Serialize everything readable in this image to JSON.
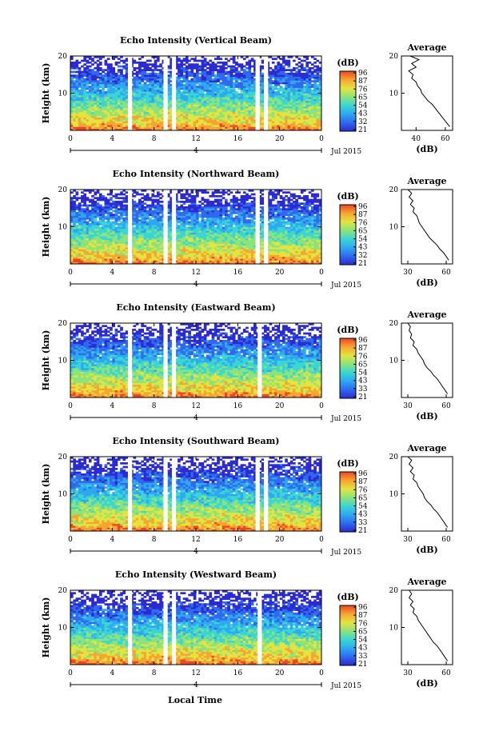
{
  "figure": {
    "xlabel_shared": "Local Time",
    "date_label": "Jul 2015",
    "date_tick": "4"
  },
  "colorbar": {
    "unit": "(dB)",
    "colors": [
      "#2b2bd1",
      "#2f69ee",
      "#2fa8f0",
      "#3ad6d3",
      "#8de37b",
      "#e3e43f",
      "#f7a531",
      "#ef4427"
    ]
  },
  "chart_data": [
    {
      "type": "heatmap",
      "title": "Echo Intensity (Vertical Beam)",
      "xlabel": "",
      "ylabel": "Height (km)",
      "x_ticks": [
        "0",
        "4",
        "8",
        "12",
        "16",
        "20",
        "0"
      ],
      "xlim": [
        0,
        24
      ],
      "ylim": [
        0,
        20
      ],
      "y_ticks": [
        "20",
        "10"
      ],
      "colorbar_ticks": [
        "96",
        "87",
        "76",
        "65",
        "54",
        "43",
        "32",
        "21"
      ],
      "gaps_hours": [
        [
          5.5,
          5.9
        ],
        [
          8.9,
          9.3
        ],
        [
          9.7,
          10.1
        ],
        [
          17.7,
          18.1
        ],
        [
          18.5,
          18.9
        ]
      ],
      "average_profile": {
        "title": "Average",
        "xlabel": "(dB)",
        "x_ticks": [
          "40",
          "60"
        ],
        "xlim": [
          30,
          65
        ],
        "y_ticks": [
          "20",
          "10"
        ],
        "height_km": [
          20,
          19,
          18,
          17,
          16,
          15,
          14,
          13,
          12,
          11,
          10,
          9,
          8,
          7,
          6,
          5,
          4,
          3,
          2,
          1
        ],
        "value_db": [
          36,
          42,
          37,
          40,
          35,
          38,
          37,
          40,
          41,
          43,
          44,
          46,
          48,
          51,
          53,
          55,
          57,
          59,
          61,
          63
        ]
      }
    },
    {
      "type": "heatmap",
      "title": "Echo Intensity (Northward Beam)",
      "xlabel": "",
      "ylabel": "Height (km)",
      "x_ticks": [
        "0",
        "4",
        "8",
        "12",
        "16",
        "20",
        "0"
      ],
      "xlim": [
        0,
        24
      ],
      "ylim": [
        0,
        20
      ],
      "y_ticks": [
        "20",
        "10"
      ],
      "colorbar_ticks": [
        "96",
        "87",
        "76",
        "65",
        "54",
        "43",
        "32",
        "21"
      ],
      "gaps_hours": [
        [
          5.5,
          5.9
        ],
        [
          8.9,
          9.3
        ],
        [
          9.7,
          10.1
        ],
        [
          17.7,
          18.1
        ],
        [
          18.5,
          18.9
        ]
      ],
      "average_profile": {
        "title": "Average",
        "xlabel": "(dB)",
        "x_ticks": [
          "30",
          "60"
        ],
        "xlim": [
          25,
          65
        ],
        "y_ticks": [
          "20",
          "10"
        ],
        "height_km": [
          20,
          19,
          18,
          17,
          16,
          15,
          14,
          13,
          12,
          11,
          10,
          9,
          8,
          7,
          6,
          5,
          4,
          3,
          2,
          1
        ],
        "value_db": [
          30,
          33,
          31,
          34,
          32,
          35,
          34,
          37,
          38,
          39,
          41,
          43,
          45,
          47,
          50,
          53,
          55,
          58,
          60,
          62
        ]
      }
    },
    {
      "type": "heatmap",
      "title": "Echo Intensity (Eastward Beam)",
      "xlabel": "",
      "ylabel": "Height (km)",
      "x_ticks": [
        "0",
        "4",
        "8",
        "12",
        "16",
        "20",
        "0"
      ],
      "xlim": [
        0,
        24
      ],
      "ylim": [
        0,
        20
      ],
      "y_ticks": [
        "20",
        "10"
      ],
      "colorbar_ticks": [
        "96",
        "87",
        "76",
        "65",
        "54",
        "43",
        "33",
        "21"
      ],
      "gaps_hours": [
        [
          5.5,
          5.9
        ],
        [
          8.9,
          9.3
        ],
        [
          9.7,
          10.1
        ],
        [
          17.9,
          18.3
        ]
      ],
      "average_profile": {
        "title": "Average",
        "xlabel": "(dB)",
        "x_ticks": [
          "30",
          "60"
        ],
        "xlim": [
          25,
          65
        ],
        "y_ticks": [
          "20",
          "10"
        ],
        "height_km": [
          20,
          19,
          18,
          17,
          16,
          15,
          14,
          13,
          12,
          11,
          10,
          9,
          8,
          7,
          6,
          5,
          4,
          3,
          2,
          1
        ],
        "value_db": [
          30,
          32,
          31,
          33,
          32,
          35,
          34,
          37,
          38,
          40,
          42,
          43,
          45,
          48,
          50,
          53,
          55,
          57,
          59,
          61
        ]
      }
    },
    {
      "type": "heatmap",
      "title": "Echo Intensity (Southward Beam)",
      "xlabel": "",
      "ylabel": "Height (km)",
      "x_ticks": [
        "0",
        "4",
        "8",
        "12",
        "16",
        "20",
        "0"
      ],
      "xlim": [
        0,
        24
      ],
      "ylim": [
        0,
        20
      ],
      "y_ticks": [
        "20",
        "10"
      ],
      "colorbar_ticks": [
        "96",
        "87",
        "76",
        "65",
        "54",
        "43",
        "33",
        "21"
      ],
      "gaps_hours": [
        [
          5.5,
          5.9
        ],
        [
          8.9,
          9.3
        ],
        [
          9.7,
          10.1
        ],
        [
          17.7,
          18.1
        ],
        [
          18.5,
          18.9
        ]
      ],
      "average_profile": {
        "title": "Average",
        "xlabel": "(dB)",
        "x_ticks": [
          "30",
          "60"
        ],
        "xlim": [
          25,
          65
        ],
        "y_ticks": [
          "20",
          "10"
        ],
        "height_km": [
          20,
          19,
          18,
          17,
          16,
          15,
          14,
          13,
          12,
          11,
          10,
          9,
          8,
          7,
          6,
          5,
          4,
          3,
          2,
          1
        ],
        "value_db": [
          30,
          33,
          31,
          34,
          32,
          35,
          34,
          37,
          38,
          40,
          42,
          43,
          45,
          48,
          50,
          53,
          55,
          57,
          59,
          61
        ]
      }
    },
    {
      "type": "heatmap",
      "title": "Echo Intensity (Westward Beam)",
      "xlabel": "Local Time",
      "ylabel": "Height (km)",
      "x_ticks": [
        "0",
        "4",
        "8",
        "12",
        "16",
        "20",
        "0"
      ],
      "xlim": [
        0,
        24
      ],
      "ylim": [
        0,
        20
      ],
      "y_ticks": [
        "20",
        "10"
      ],
      "colorbar_ticks": [
        "96",
        "87",
        "76",
        "65",
        "54",
        "43",
        "33",
        "21"
      ],
      "gaps_hours": [
        [
          5.5,
          5.9
        ],
        [
          8.9,
          9.3
        ],
        [
          9.7,
          10.1
        ],
        [
          17.9,
          18.3
        ]
      ],
      "average_profile": {
        "title": "Average",
        "xlabel": "(dB)",
        "x_ticks": [
          "30",
          "60"
        ],
        "xlim": [
          25,
          65
        ],
        "y_ticks": [
          "20",
          "10"
        ],
        "height_km": [
          20,
          19,
          18,
          17,
          16,
          15,
          14,
          13,
          12,
          11,
          10,
          9,
          8,
          7,
          6,
          5,
          4,
          3,
          2,
          1
        ],
        "value_db": [
          31,
          33,
          31,
          34,
          32,
          35,
          34,
          37,
          38,
          40,
          42,
          44,
          46,
          48,
          50,
          53,
          55,
          57,
          59,
          61
        ]
      }
    }
  ]
}
